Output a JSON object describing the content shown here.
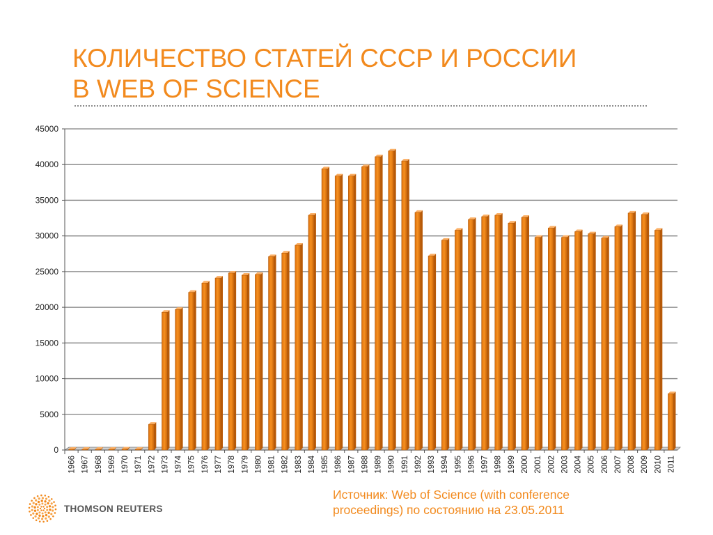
{
  "title": {
    "line1": "КОЛИЧЕСТВО СТАТЕЙ СССР И РОССИИ",
    "line2": "В WEB OF SCIENCE"
  },
  "source": {
    "line1": "Источник: Web of Science (with conference",
    "line2": "proceedings) по состоянию на 23.05.2011"
  },
  "logo": {
    "text": "THOMSON REUTERS",
    "icon": "thomson-reuters-dot-sphere-icon"
  },
  "colors": {
    "accent": "#f28a1e",
    "bar": "#f5861f",
    "bar_dark": "#b85a08",
    "grid": "#7f7f7f"
  },
  "chart_data": {
    "type": "bar",
    "title": "КОЛИЧЕСТВО СТАТЕЙ СССР И РОССИИ В WEB OF SCIENCE",
    "xlabel": "",
    "ylabel": "",
    "ylim": [
      0,
      45000
    ],
    "yticks": [
      0,
      5000,
      10000,
      15000,
      20000,
      25000,
      30000,
      35000,
      40000,
      45000
    ],
    "grid": true,
    "legend": "none",
    "categories": [
      "1966",
      "1967",
      "1968",
      "1969",
      "1970",
      "1971",
      "1972",
      "1973",
      "1974",
      "1975",
      "1976",
      "1977",
      "1978",
      "1979",
      "1980",
      "1981",
      "1982",
      "1983",
      "1984",
      "1985",
      "1986",
      "1987",
      "1988",
      "1989",
      "1990",
      "1991",
      "1992",
      "1993",
      "1994",
      "1995",
      "1996",
      "1997",
      "1998",
      "1999",
      "2000",
      "2001",
      "2002",
      "2003",
      "2004",
      "2005",
      "2006",
      "2007",
      "2008",
      "2009",
      "2010",
      "2011"
    ],
    "values": [
      100,
      100,
      100,
      100,
      150,
      100,
      3600,
      19300,
      19700,
      22100,
      23400,
      24100,
      24800,
      24500,
      24600,
      27100,
      27600,
      28700,
      32900,
      39400,
      38400,
      38400,
      39700,
      41100,
      41900,
      40500,
      33300,
      27200,
      29400,
      30800,
      32300,
      32700,
      32900,
      31800,
      32600,
      29800,
      31100,
      29800,
      30600,
      30300,
      29700,
      31300,
      33200,
      33000,
      30800,
      7900
    ]
  }
}
